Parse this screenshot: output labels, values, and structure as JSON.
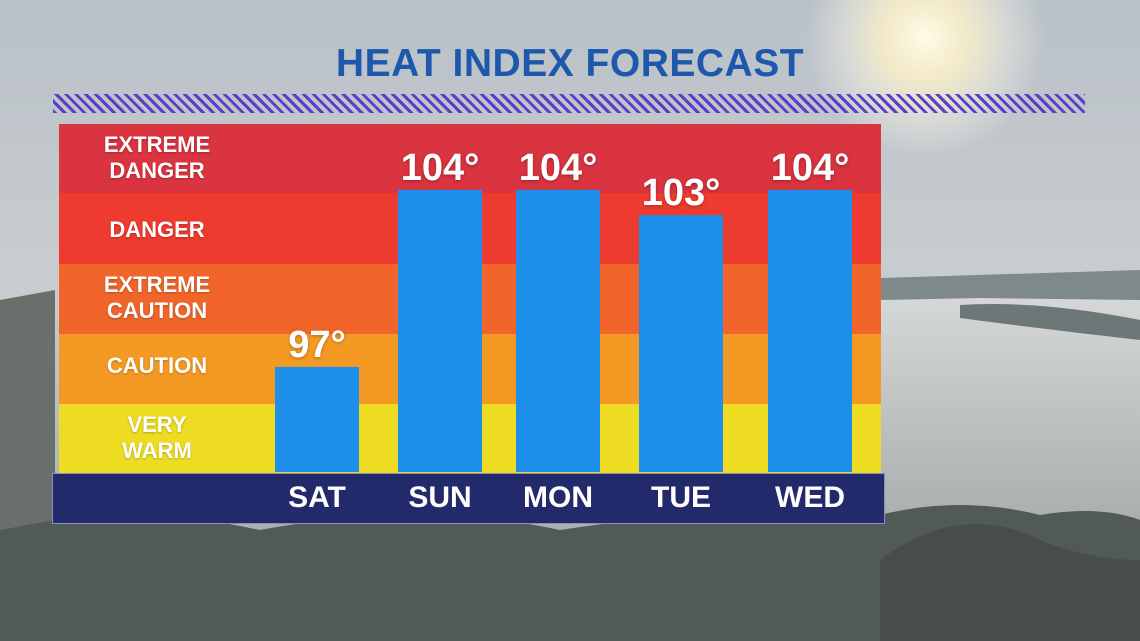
{
  "title": "HEAT INDEX FORECAST",
  "colors": {
    "title": "#1e58ad",
    "bar": "#1e8fe8",
    "day_bar": "#232a6b",
    "bands": [
      "#d9343f",
      "#ee3b30",
      "#f1652a",
      "#f49a24",
      "#eedc23"
    ]
  },
  "bands": [
    {
      "label": "EXTREME\nDANGER"
    },
    {
      "label": "DANGER"
    },
    {
      "label": "EXTREME\nCAUTION"
    },
    {
      "label": "CAUTION"
    },
    {
      "label": "VERY\nWARM"
    }
  ],
  "chart_data": {
    "type": "bar",
    "title": "HEAT INDEX FORECAST",
    "categories": [
      "SAT",
      "SUN",
      "MON",
      "TUE",
      "WED"
    ],
    "values": [
      97,
      104,
      104,
      103,
      104
    ],
    "value_labels": [
      "97°",
      "104°",
      "104°",
      "103°",
      "104°"
    ],
    "xlabel": "",
    "ylabel": "",
    "grid": false,
    "legend": "none"
  }
}
